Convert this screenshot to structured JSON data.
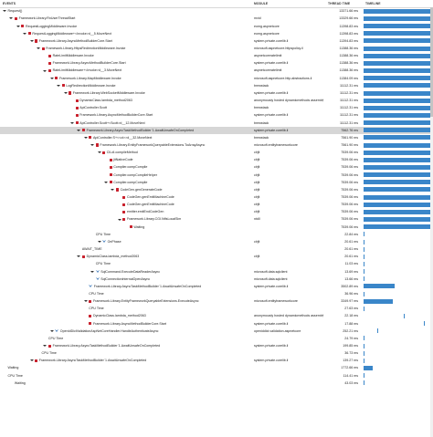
{
  "header": {
    "events_label": "EVENTS",
    "module_label": "MODULE",
    "thread_time_label": "THREAD TIME",
    "timeline_label": "TIMELINE"
  },
  "rows": [
    {
      "indent": 0,
      "expand": true,
      "icon": "none",
      "name": "Request()",
      "module": "",
      "time": "13371.66 ms",
      "bar": [
        0,
        1
      ]
    },
    {
      "indent": 1,
      "expand": true,
      "icon": "flame",
      "name": "Framework.Library.RnUserThreadStart",
      "module": "mvid",
      "time": "13329.66 ms",
      "bar": [
        0,
        1
      ]
    },
    {
      "indent": 2,
      "expand": true,
      "icon": "flame",
      "name": "RequestLoggingMiddleware.Invoke",
      "module": "eomg.aspnetcore",
      "time": "11398.83 ms",
      "bar": [
        0,
        1
      ]
    },
    {
      "indent": 3,
      "expand": true,
      "icon": "flame",
      "name": "RequestLoggingMiddleware+<Invoke>d__5.MoveNext",
      "module": "eomg.aspnetcore",
      "time": "11398.83 ms",
      "bar": [
        0,
        1
      ]
    },
    {
      "indent": 4,
      "expand": true,
      "icon": "flame",
      "name": "Framework.Library.AsyncMethodBuilderCore.Start",
      "module": "system.private.corelib.il",
      "time": "11394.83 ms",
      "bar": [
        0,
        1
      ]
    },
    {
      "indent": 5,
      "expand": true,
      "icon": "flame",
      "name": "Framework.Library.HttpsRedirectionMiddleware.Invoke",
      "module": "microsoft.aspnetcore.httpspolicy.il",
      "time": "11388.36 ms",
      "bar": [
        0,
        1
      ]
    },
    {
      "indent": 6,
      "expand": false,
      "icon": "flame",
      "name": "RateLimitMiddleware.Invoke",
      "module": "aspnetcoreratelimit",
      "time": "11388.36 ms",
      "bar": [
        0,
        1
      ]
    },
    {
      "indent": 6,
      "expand": false,
      "icon": "flame",
      "name": "Framework.Library.AsyncMethodBuilderCore.Start",
      "module": "system.private.corelib.il",
      "time": "11388.36 ms",
      "bar": [
        0,
        1
      ]
    },
    {
      "indent": 6,
      "expand": true,
      "icon": "flame",
      "name": "RateLimitMiddleware+<Invoke>d__3.MoveNext",
      "module": "aspnetcoreratelimit",
      "time": "11388.36 ms",
      "bar": [
        0,
        1
      ]
    },
    {
      "indent": 7,
      "expand": true,
      "icon": "flame",
      "name": "Framework.Library.MapMiddleware.Invoke",
      "module": "microsoft.aspnetcore.http.abstractions.il",
      "time": "11384.09 ms",
      "bar": [
        0,
        1
      ]
    },
    {
      "indent": 8,
      "expand": true,
      "icon": "flame",
      "name": "LogRedirectionMiddleware.Invoke",
      "module": "brewstack",
      "time": "11112.31 ms",
      "bar": [
        0,
        1
      ]
    },
    {
      "indent": 9,
      "expand": true,
      "icon": "flame",
      "name": "Framework.Library.WebSocketMiddleware.Invoke",
      "module": "system.private.corelib.il",
      "time": "11112.31 ms",
      "bar": [
        0,
        1
      ]
    },
    {
      "indent": 10,
      "expand": false,
      "icon": "flame",
      "name": "DynamicClass.lambda_method2063",
      "module": "anonymously hosted dynamicmethods assembly",
      "time": "11112.31 ms",
      "bar": [
        0,
        1
      ]
    },
    {
      "indent": 10,
      "expand": false,
      "icon": "flame",
      "name": "ApiController.Scott",
      "module": "brewstack",
      "time": "11112.31 ms",
      "bar": [
        0,
        1
      ]
    },
    {
      "indent": 10,
      "expand": false,
      "icon": "flame",
      "name": "Framework.Library.AsyncMethodBuilderCore.Start",
      "module": "system.private.corelib.il",
      "time": "11112.31 ms",
      "bar": [
        0,
        1
      ]
    },
    {
      "indent": 10,
      "expand": true,
      "icon": "flame",
      "name": "ApiController.Scott+<Scott>d__12.MoveNext",
      "module": "brewstack",
      "time": "11112.31 ms",
      "bar": [
        0,
        1
      ]
    },
    {
      "indent": 11,
      "expand": true,
      "icon": "flame",
      "name": "Framework.Library.AsyncTaskMethodBuilder`1.AwaitUnsafeOnCompleted",
      "module": "system.private.corelib.il",
      "time": "7562.76 ms",
      "bar": [
        0,
        1
      ],
      "selected": true
    },
    {
      "indent": 12,
      "expand": true,
      "icon": "flame",
      "name": "ApiController.S+<<ct>>d__32.MoveNext",
      "module": "brewstack",
      "time": "7561.90 ms",
      "bar": [
        0,
        1
      ]
    },
    {
      "indent": 13,
      "expand": true,
      "icon": "flame",
      "name": "Framework.Library.EntityFrameworkQueryableExtensions.ToArrayAsync",
      "module": "microsoft.entityframeworkcore",
      "time": "7561.90 ms",
      "bar": [
        0,
        1
      ]
    },
    {
      "indent": 14,
      "expand": true,
      "icon": "flame",
      "name": "CILdI.compileMethod",
      "module": "clrjit",
      "time": "7539.06 ms",
      "bar": [
        0,
        1
      ]
    },
    {
      "indent": 15,
      "expand": false,
      "icon": "flame",
      "name": "jitNativeCode",
      "module": "clrjit",
      "time": "7539.06 ms",
      "bar": [
        0,
        1
      ]
    },
    {
      "indent": 15,
      "expand": false,
      "icon": "flame",
      "name": "Compiler.compCompile",
      "module": "clrjit",
      "time": "7539.06 ms",
      "bar": [
        0,
        1
      ]
    },
    {
      "indent": 15,
      "expand": false,
      "icon": "flame",
      "name": "Compiler.compCompileHelper",
      "module": "clrjit",
      "time": "7539.06 ms",
      "bar": [
        0,
        1
      ]
    },
    {
      "indent": 15,
      "expand": true,
      "icon": "flame",
      "name": "Compiler.compCompile",
      "module": "clrjit",
      "time": "7539.06 ms",
      "bar": [
        0,
        1
      ]
    },
    {
      "indent": 16,
      "expand": true,
      "icon": "flame",
      "name": "CodeGen.genGenerateCode",
      "module": "clrjit",
      "time": "7539.06 ms",
      "bar": [
        0,
        1
      ]
    },
    {
      "indent": 17,
      "expand": false,
      "icon": "flame",
      "name": "CodeGen.genEmitMachineCode",
      "module": "clrjit",
      "time": "7539.06 ms",
      "bar": [
        0,
        1
      ]
    },
    {
      "indent": 17,
      "expand": false,
      "icon": "flame",
      "name": "CodeGen.genEmitMachineCode",
      "module": "clrjit",
      "time": "7539.06 ms",
      "bar": [
        0,
        1
      ]
    },
    {
      "indent": 17,
      "expand": false,
      "icon": "flame",
      "name": "emitter.emitEndCodeGen",
      "module": "clrjit",
      "time": "7539.06 ms",
      "bar": [
        0,
        1
      ]
    },
    {
      "indent": 17,
      "expand": true,
      "icon": "flame",
      "name": "Framework.Library.CGI.NtfsLocalSim",
      "module": "ntdll",
      "time": "7539.06 ms",
      "bar": [
        0,
        1
      ]
    },
    {
      "indent": 18,
      "expand": false,
      "icon": "flame",
      "name": "Waiting",
      "module": "",
      "time": "7539.06 ms",
      "bar": [
        0,
        1
      ]
    },
    {
      "indent": 13,
      "expand": false,
      "icon": "none",
      "name": "CPU Time",
      "module": "",
      "time": "22.84 ms",
      "bar": [
        0,
        0.02
      ]
    },
    {
      "indent": 14,
      "expand": true,
      "icon": "wait",
      "name": "OnPhase",
      "module": "clrjit",
      "time": "20.61 ms",
      "bar": [
        0,
        0.02
      ]
    },
    {
      "indent": 11,
      "expand": false,
      "icon": "none",
      "name": "AWAIT_TIME",
      "module": "",
      "time": "20.61 ms",
      "bar": [
        0,
        0.02
      ]
    },
    {
      "indent": 11,
      "expand": true,
      "icon": "flame",
      "name": "DynamicClass.lambda_method2063",
      "module": "clrjit",
      "time": "20.61 ms",
      "bar": [
        0,
        0.02
      ]
    },
    {
      "indent": 13,
      "expand": false,
      "icon": "none",
      "name": "CPU Time",
      "module": "",
      "time": "11.03 ms",
      "bar": [
        0,
        0.01
      ]
    },
    {
      "indent": 13,
      "expand": true,
      "icon": "wait",
      "name": "SqlCommand.ExecuteDataReaderAsync",
      "module": "microsoft.data.sqlclient",
      "time": "13.69 ms",
      "bar": [
        0,
        0.01
      ]
    },
    {
      "indent": 13,
      "expand": false,
      "icon": "wait",
      "name": "SqlConnectionInternalOpenAsync",
      "module": "microsoft.data.sqlclient",
      "time": "13.66 ms",
      "bar": [
        0,
        0.01
      ]
    },
    {
      "indent": 12,
      "expand": false,
      "icon": "wait",
      "name": "Framework.Library.AsyncTaskMethodBuilder`1.AwaitUnsafeOnCompleted",
      "module": "system.private.corelib.il",
      "time": "3502.89 ms",
      "bar": [
        0,
        0.46
      ]
    },
    {
      "indent": 12,
      "expand": false,
      "icon": "none",
      "name": "CPU Time",
      "module": "",
      "time": "36.96 ms",
      "bar": [
        0,
        0.02
      ]
    },
    {
      "indent": 12,
      "expand": true,
      "icon": "flame",
      "name": "Framework.Library.EntityFrameworkQueryableExtensions.ExecuteAsync",
      "module": "microsoft.entityframeworkcore",
      "time": "3349.97 ms",
      "bar": [
        0,
        0.44
      ]
    },
    {
      "indent": 12,
      "expand": false,
      "icon": "none",
      "name": "CPU Time",
      "module": "",
      "time": "27.63 ms",
      "bar": [
        0,
        0.02
      ]
    },
    {
      "indent": 12,
      "expand": false,
      "icon": "flame",
      "name": "DynamicClass.lambda_method2063",
      "module": "anonymously hosted dynamicmethods assembly",
      "time": "22.18 ms",
      "bar": [
        0.6,
        0.02
      ]
    },
    {
      "indent": 12,
      "expand": false,
      "icon": "flame",
      "name": "Framework.Library.AsyncMethodBuilderCore.Start",
      "module": "system.private.corelib.il",
      "time": "17.88 ms",
      "bar": [
        0.9,
        0.02
      ]
    },
    {
      "indent": 7,
      "expand": true,
      "icon": "wait",
      "name": "OpenIdDictValidationAspNetCoreHandler.HandleAuthenticateAsync",
      "module": "openiddict.validation.aspnetcore",
      "time": "252.21 ms",
      "bar": [
        0.2,
        0.02
      ]
    },
    {
      "indent": 6,
      "expand": false,
      "icon": "none",
      "name": "CPU Time",
      "module": "",
      "time": "24.79 ms",
      "bar": [
        0,
        0.02
      ]
    },
    {
      "indent": 6,
      "expand": true,
      "icon": "flame",
      "name": "Framework.Library.AsyncTaskMethodBuilder`1.AwaitUnsafeOnCompleted",
      "module": "system.private.corelib.il",
      "time": "199.85 ms",
      "bar": [
        0,
        0.02
      ]
    },
    {
      "indent": 5,
      "expand": false,
      "icon": "none",
      "name": "CPU Time",
      "module": "",
      "time": "36.73 ms",
      "bar": [
        0,
        0.02
      ]
    },
    {
      "indent": 4,
      "expand": true,
      "icon": "flame",
      "name": "Framework.Library.AsyncTaskMethodBuilder`1.AwaitUnsafeOnCompleted",
      "module": "system.private.corelib.il",
      "time": "139.27 ms",
      "bar": [
        0,
        0.02
      ]
    },
    {
      "indent": 0,
      "expand": false,
      "icon": "none",
      "name": "Waiting",
      "module": "",
      "time": "1772.66 ms",
      "bar": [
        0,
        0.14
      ]
    },
    {
      "indent": 0,
      "expand": false,
      "icon": "none",
      "name": "CPU Time",
      "module": "",
      "time": "114.41 ms",
      "bar": [
        0,
        0.02
      ]
    },
    {
      "indent": 1,
      "expand": false,
      "icon": "none",
      "name": "Waiting",
      "module": "",
      "time": "43.03 ms",
      "bar": [
        0,
        0.02
      ]
    }
  ]
}
